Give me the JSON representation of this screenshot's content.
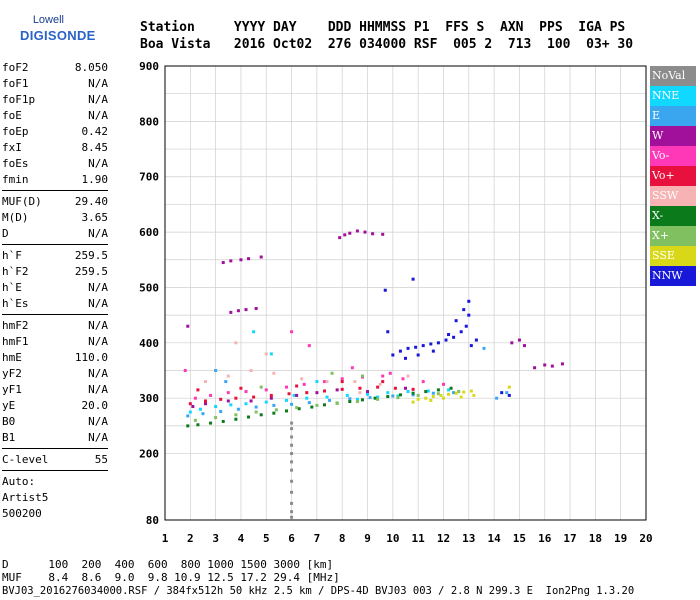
{
  "logo": {
    "line1": "Lowell",
    "line2_a": "DIGISONDE"
  },
  "header": {
    "row1": "Station     YYYY DAY    DDD HHMMSS P1  FFS S  AXN  PPS  IGA PS",
    "row2": "Boa Vista   2016 Oct02  276 034000 RSF  005 2  713  100  03+ 30"
  },
  "params_group1": [
    {
      "label": "foF2",
      "value": "8.050"
    },
    {
      "label": "foF1",
      "value": "N/A"
    },
    {
      "label": "foF1p",
      "value": "N/A"
    },
    {
      "label": "foE",
      "value": "N/A"
    },
    {
      "label": "foEp",
      "value": "0.42"
    },
    {
      "label": "fxI",
      "value": "8.45"
    },
    {
      "label": "foEs",
      "value": "N/A"
    },
    {
      "label": "fmin",
      "value": "1.90"
    }
  ],
  "params_group2": [
    {
      "label": "MUF(D)",
      "value": "29.40"
    },
    {
      "label": "M(D)",
      "value": "3.65"
    },
    {
      "label": "D",
      "value": "N/A"
    }
  ],
  "params_group3": [
    {
      "label": "h`F",
      "value": "259.5"
    },
    {
      "label": "h`F2",
      "value": "259.5"
    },
    {
      "label": "h`E",
      "value": "N/A"
    },
    {
      "label": "h`Es",
      "value": "N/A"
    }
  ],
  "params_group4": [
    {
      "label": "hmF2",
      "value": "N/A"
    },
    {
      "label": "hmF1",
      "value": "N/A"
    },
    {
      "label": "hmE",
      "value": "110.0"
    },
    {
      "label": "yF2",
      "value": "N/A"
    },
    {
      "label": "yF1",
      "value": "N/A"
    },
    {
      "label": "yE",
      "value": "20.0"
    },
    {
      "label": "B0",
      "value": "N/A"
    },
    {
      "label": "B1",
      "value": "N/A"
    }
  ],
  "clevel": {
    "label": "C-level",
    "value": "55"
  },
  "auto": {
    "line1": "Auto:",
    "line2": "Artist5",
    "line3": "500200"
  },
  "legend": [
    {
      "label": "NoVal",
      "color": "#8c8c8c"
    },
    {
      "label": "NNE",
      "color": "#10d8ff"
    },
    {
      "label": "E",
      "color": "#3aa6f0"
    },
    {
      "label": "W",
      "color": "#a0109a"
    },
    {
      "label": "Vo-",
      "color": "#ff38b8"
    },
    {
      "label": "Vo+",
      "color": "#e8103c"
    },
    {
      "label": "SSW",
      "color": "#f7b3b3"
    },
    {
      "label": "X-",
      "color": "#0a7a1a"
    },
    {
      "label": "X+",
      "color": "#80c060"
    },
    {
      "label": "SSE",
      "color": "#d8d818"
    },
    {
      "label": "NNW",
      "color": "#1818d8"
    }
  ],
  "footer": {
    "row1": "D      100  200  400  600  800 1000 1500 3000 [km]",
    "row2": "MUF    8.4  8.6  9.0  9.8 10.9 12.5 17.2 29.4 [MHz]",
    "row3": "BVJ03_2016276034000.RSF / 384fx512h 50 kHz 2.5 km / DPS-4D BVJ03 003 / 2.8 N 299.3 E  Ion2Png 1.3.20"
  },
  "chart_data": {
    "type": "scatter",
    "title": "",
    "xlabel": "",
    "ylabel": "",
    "xlim": [
      1,
      20
    ],
    "ylim": [
      80,
      900
    ],
    "x_ticks": [
      1,
      2,
      3,
      4,
      5,
      6,
      7,
      8,
      9,
      10,
      11,
      12,
      13,
      14,
      15,
      16,
      17,
      18,
      19,
      20
    ],
    "y_ticks": [
      80,
      200,
      300,
      400,
      500,
      600,
      700,
      800,
      900
    ],
    "grid": true,
    "legend_position": "right",
    "series": [
      {
        "name": "NNE",
        "color": "#10d8ff",
        "points": [
          [
            2.0,
            275
          ],
          [
            2.4,
            280
          ],
          [
            3.0,
            285
          ],
          [
            3.6,
            288
          ],
          [
            4.2,
            290
          ],
          [
            5.0,
            293
          ],
          [
            5.8,
            296
          ],
          [
            6.6,
            300
          ],
          [
            7.4,
            302
          ],
          [
            8.2,
            305
          ],
          [
            9.0,
            307
          ],
          [
            9.8,
            310
          ],
          [
            10.6,
            312
          ],
          [
            11.4,
            313
          ],
          [
            12.2,
            315
          ],
          [
            4.5,
            420
          ],
          [
            5.2,
            380
          ],
          [
            6.1,
            305
          ],
          [
            7.0,
            330
          ],
          [
            8.6,
            298
          ],
          [
            9.4,
            302
          ],
          [
            10.2,
            304
          ]
        ]
      },
      {
        "name": "E",
        "color": "#3aa6f0",
        "points": [
          [
            1.9,
            268
          ],
          [
            2.5,
            272
          ],
          [
            3.2,
            276
          ],
          [
            3.9,
            280
          ],
          [
            4.6,
            284
          ],
          [
            5.3,
            287
          ],
          [
            6.0,
            289
          ],
          [
            6.7,
            292
          ],
          [
            7.5,
            296
          ],
          [
            8.3,
            299
          ],
          [
            9.1,
            301
          ],
          [
            10.0,
            304
          ],
          [
            10.8,
            306
          ],
          [
            11.6,
            309
          ],
          [
            12.4,
            310
          ],
          [
            13.6,
            390
          ],
          [
            14.1,
            300
          ],
          [
            14.5,
            310
          ],
          [
            3.0,
            350
          ],
          [
            3.4,
            330
          ]
        ]
      },
      {
        "name": "W",
        "color": "#a0109a",
        "points": [
          [
            1.9,
            430
          ],
          [
            3.3,
            545
          ],
          [
            3.6,
            548
          ],
          [
            4.0,
            550
          ],
          [
            4.3,
            552
          ],
          [
            4.8,
            555
          ],
          [
            3.6,
            455
          ],
          [
            3.9,
            458
          ],
          [
            4.2,
            460
          ],
          [
            4.6,
            462
          ],
          [
            7.9,
            590
          ],
          [
            8.1,
            595
          ],
          [
            8.3,
            598
          ],
          [
            8.6,
            602
          ],
          [
            8.9,
            600
          ],
          [
            9.2,
            597
          ],
          [
            9.6,
            596
          ],
          [
            2.1,
            285
          ],
          [
            2.6,
            290
          ],
          [
            3.5,
            295
          ],
          [
            4.4,
            295
          ],
          [
            5.2,
            300
          ],
          [
            6.2,
            305
          ],
          [
            7.0,
            310
          ],
          [
            7.8,
            315
          ],
          [
            9.0,
            312
          ],
          [
            10.5,
            318
          ],
          [
            14.7,
            400
          ],
          [
            15.0,
            405
          ],
          [
            15.2,
            395
          ],
          [
            15.6,
            355
          ],
          [
            16.0,
            360
          ],
          [
            16.3,
            358
          ],
          [
            16.7,
            362
          ]
        ]
      },
      {
        "name": "Vo-",
        "color": "#ff38b8",
        "points": [
          [
            1.8,
            350
          ],
          [
            2.2,
            300
          ],
          [
            2.8,
            305
          ],
          [
            3.5,
            310
          ],
          [
            4.2,
            312
          ],
          [
            5.0,
            315
          ],
          [
            5.8,
            320
          ],
          [
            6.5,
            325
          ],
          [
            7.3,
            330
          ],
          [
            8.0,
            335
          ],
          [
            8.8,
            338
          ],
          [
            9.6,
            340
          ],
          [
            10.4,
            335
          ],
          [
            11.2,
            330
          ],
          [
            12.0,
            325
          ],
          [
            6.0,
            420
          ],
          [
            6.7,
            395
          ],
          [
            8.4,
            355
          ],
          [
            9.9,
            345
          ]
        ]
      },
      {
        "name": "Vo+",
        "color": "#e8103c",
        "points": [
          [
            2.0,
            290
          ],
          [
            2.6,
            295
          ],
          [
            3.2,
            298
          ],
          [
            3.8,
            300
          ],
          [
            4.5,
            302
          ],
          [
            5.2,
            305
          ],
          [
            5.9,
            308
          ],
          [
            6.6,
            310
          ],
          [
            7.3,
            313
          ],
          [
            8.0,
            316
          ],
          [
            8.7,
            318
          ],
          [
            9.4,
            320
          ],
          [
            10.1,
            318
          ],
          [
            10.8,
            316
          ],
          [
            2.3,
            315
          ],
          [
            4.0,
            318
          ],
          [
            6.2,
            322
          ],
          [
            8.0,
            330
          ],
          [
            9.6,
            330
          ]
        ]
      },
      {
        "name": "SSW",
        "color": "#f7b3b3",
        "points": [
          [
            2.6,
            330
          ],
          [
            3.5,
            340
          ],
          [
            4.4,
            350
          ],
          [
            5.3,
            345
          ],
          [
            6.4,
            335
          ],
          [
            7.4,
            330
          ],
          [
            8.5,
            330
          ],
          [
            9.5,
            325
          ],
          [
            3.8,
            400
          ],
          [
            5.0,
            380
          ],
          [
            8.7,
            310
          ],
          [
            10.6,
            340
          ]
        ]
      },
      {
        "name": "X-",
        "color": "#0a7a1a",
        "points": [
          [
            1.9,
            250
          ],
          [
            2.3,
            252
          ],
          [
            2.8,
            255
          ],
          [
            3.3,
            258
          ],
          [
            3.8,
            262
          ],
          [
            4.3,
            266
          ],
          [
            4.8,
            270
          ],
          [
            5.3,
            273
          ],
          [
            5.8,
            277
          ],
          [
            6.3,
            281
          ],
          [
            6.8,
            284
          ],
          [
            7.3,
            288
          ],
          [
            7.8,
            291
          ],
          [
            8.3,
            294
          ],
          [
            8.8,
            297
          ],
          [
            9.3,
            300
          ],
          [
            9.8,
            303
          ],
          [
            10.3,
            306
          ],
          [
            10.8,
            309
          ],
          [
            11.3,
            312
          ],
          [
            11.8,
            315
          ],
          [
            12.3,
            318
          ]
        ]
      },
      {
        "name": "X+",
        "color": "#80c060",
        "points": [
          [
            2.2,
            260
          ],
          [
            3.0,
            265
          ],
          [
            3.8,
            270
          ],
          [
            4.6,
            275
          ],
          [
            5.4,
            279
          ],
          [
            6.2,
            283
          ],
          [
            7.0,
            287
          ],
          [
            7.8,
            291
          ],
          [
            8.6,
            294
          ],
          [
            9.4,
            298
          ],
          [
            10.2,
            301
          ],
          [
            11.0,
            305
          ],
          [
            11.8,
            308
          ],
          [
            12.6,
            312
          ],
          [
            4.8,
            320
          ],
          [
            7.6,
            345
          ],
          [
            8.8,
            340
          ]
        ]
      },
      {
        "name": "SSE",
        "color": "#d8d818",
        "points": [
          [
            11.0,
            298
          ],
          [
            11.3,
            300
          ],
          [
            11.6,
            303
          ],
          [
            11.9,
            305
          ],
          [
            12.2,
            307
          ],
          [
            12.5,
            309
          ],
          [
            12.8,
            311
          ],
          [
            13.1,
            313
          ],
          [
            10.8,
            293
          ],
          [
            11.5,
            296
          ],
          [
            12.0,
            300
          ],
          [
            12.7,
            302
          ],
          [
            13.2,
            305
          ],
          [
            14.6,
            320
          ]
        ]
      },
      {
        "name": "NNW",
        "color": "#1818d8",
        "points": [
          [
            10.0,
            378
          ],
          [
            10.3,
            385
          ],
          [
            10.6,
            390
          ],
          [
            10.9,
            392
          ],
          [
            11.2,
            395
          ],
          [
            11.5,
            398
          ],
          [
            11.8,
            400
          ],
          [
            12.1,
            405
          ],
          [
            12.4,
            410
          ],
          [
            12.7,
            420
          ],
          [
            12.9,
            430
          ],
          [
            13.0,
            450
          ],
          [
            12.8,
            460
          ],
          [
            13.0,
            475
          ],
          [
            12.5,
            440
          ],
          [
            12.2,
            415
          ],
          [
            11.6,
            385
          ],
          [
            11.0,
            378
          ],
          [
            10.5,
            372
          ],
          [
            13.1,
            395
          ],
          [
            13.3,
            405
          ],
          [
            14.3,
            310
          ],
          [
            14.6,
            305
          ],
          [
            9.8,
            420
          ],
          [
            9.7,
            495
          ],
          [
            10.8,
            515
          ]
        ]
      },
      {
        "name": "NoVal",
        "color": "#8c8c8c",
        "points": [
          [
            6.0,
            230
          ],
          [
            6.0,
            215
          ],
          [
            6.0,
            200
          ],
          [
            6.0,
            185
          ],
          [
            6.0,
            170
          ],
          [
            6.0,
            150
          ],
          [
            6.0,
            130
          ],
          [
            6.0,
            110
          ],
          [
            6.0,
            95
          ],
          [
            6.0,
            85
          ],
          [
            6.0,
            245
          ],
          [
            6.0,
            255
          ]
        ]
      }
    ]
  }
}
